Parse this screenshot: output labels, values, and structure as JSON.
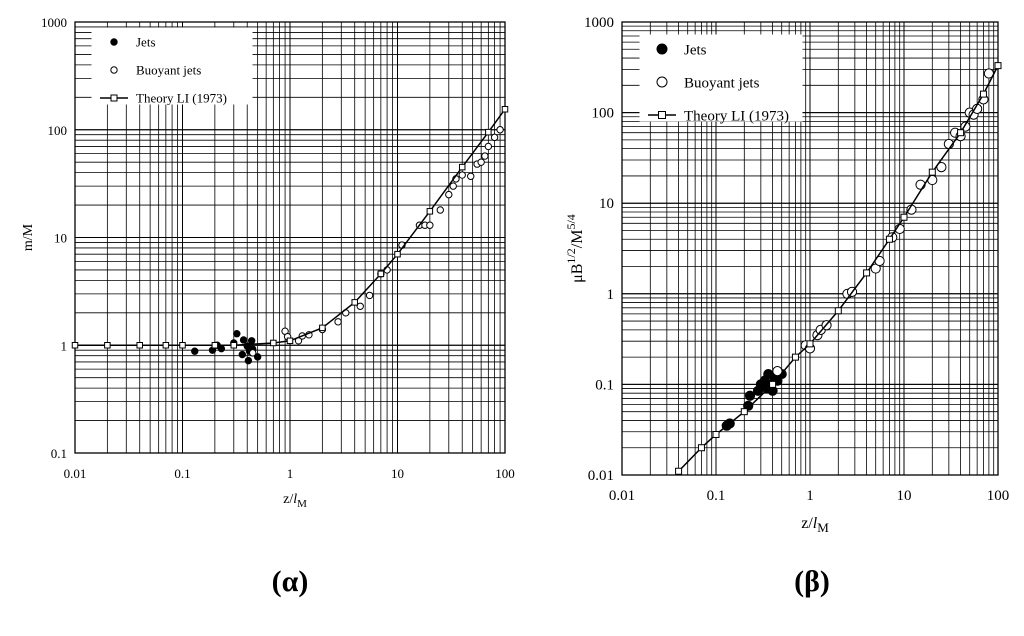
{
  "chart_data": [
    {
      "type": "scatter",
      "panel_label": "(α)",
      "xscale": "log",
      "yscale": "log",
      "xlim": [
        0.01,
        100
      ],
      "ylim": [
        0.1,
        1000
      ],
      "xticks": [
        "0.01",
        "0.1",
        "1",
        "10",
        "100"
      ],
      "yticks": [
        "0.1",
        "1",
        "10",
        "100",
        "1000"
      ],
      "xlabel": {
        "main": "z/",
        "italic": "l",
        "sub": "M"
      },
      "ylabel": "m/M",
      "grid": true,
      "legend_position": "top-left",
      "series": [
        {
          "name": "Jets",
          "marker": "filled-circle",
          "points": [
            [
              0.13,
              0.88
            ],
            [
              0.19,
              0.9
            ],
            [
              0.21,
              1.0
            ],
            [
              0.23,
              0.93
            ],
            [
              0.3,
              1.05
            ],
            [
              0.32,
              1.28
            ],
            [
              0.36,
              0.82
            ],
            [
              0.37,
              1.12
            ],
            [
              0.4,
              0.98
            ],
            [
              0.41,
              0.72
            ],
            [
              0.42,
              0.88
            ],
            [
              0.44,
              1.1
            ],
            [
              0.45,
              0.92
            ],
            [
              0.5,
              0.78
            ]
          ]
        },
        {
          "name": "Buoyant jets",
          "marker": "open-circle",
          "points": [
            [
              0.45,
              0.85
            ],
            [
              0.9,
              1.35
            ],
            [
              0.95,
              1.2
            ],
            [
              1.2,
              1.1
            ],
            [
              1.3,
              1.22
            ],
            [
              1.5,
              1.25
            ],
            [
              2.0,
              1.4
            ],
            [
              2.8,
              1.65
            ],
            [
              3.3,
              2.0
            ],
            [
              4.5,
              2.3
            ],
            [
              5.5,
              2.9
            ],
            [
              7.0,
              4.6
            ],
            [
              8.0,
              5.0
            ],
            [
              11,
              8.5
            ],
            [
              16,
              13
            ],
            [
              18,
              13
            ],
            [
              20,
              13
            ],
            [
              25,
              18
            ],
            [
              30,
              25
            ],
            [
              33,
              30
            ],
            [
              35,
              35
            ],
            [
              40,
              38
            ],
            [
              48,
              37
            ],
            [
              55,
              48
            ],
            [
              60,
              50
            ],
            [
              65,
              57
            ],
            [
              70,
              70
            ],
            [
              80,
              85
            ],
            [
              90,
              100
            ]
          ]
        },
        {
          "name": "Theory LI (1973)",
          "marker": "open-square-line",
          "points": [
            [
              0.01,
              1.0
            ],
            [
              0.02,
              1.0
            ],
            [
              0.04,
              1.0
            ],
            [
              0.07,
              1.0
            ],
            [
              0.1,
              1.0
            ],
            [
              0.2,
              1.0
            ],
            [
              0.3,
              1.0
            ],
            [
              0.7,
              1.05
            ],
            [
              1.0,
              1.1
            ],
            [
              2.0,
              1.45
            ],
            [
              4.0,
              2.5
            ],
            [
              7.0,
              4.6
            ],
            [
              10,
              7.0
            ],
            [
              20,
              17.5
            ],
            [
              40,
              45
            ],
            [
              70,
              95
            ],
            [
              100,
              155
            ]
          ]
        }
      ]
    },
    {
      "type": "scatter",
      "panel_label": "(β)",
      "xscale": "log",
      "yscale": "log",
      "xlim": [
        0.01,
        100
      ],
      "ylim": [
        0.01,
        1000
      ],
      "xticks": [
        "0.01",
        "0.1",
        "1",
        "10",
        "100"
      ],
      "yticks": [
        "0.01",
        "0.1",
        "1",
        "10",
        "100",
        "1000"
      ],
      "xlabel": {
        "main": "z/",
        "italic": "l",
        "sub": "M"
      },
      "ylabel": {
        "main": "μB",
        "sup1": "1/2",
        "mid": "/M",
        "sup2": "5/4"
      },
      "grid": true,
      "legend_position": "top-left",
      "series": [
        {
          "name": "Jets",
          "marker": "filled-circle",
          "points": [
            [
              0.13,
              0.035
            ],
            [
              0.14,
              0.037
            ],
            [
              0.22,
              0.058
            ],
            [
              0.23,
              0.075
            ],
            [
              0.28,
              0.085
            ],
            [
              0.3,
              0.1
            ],
            [
              0.33,
              0.11
            ],
            [
              0.35,
              0.09
            ],
            [
              0.36,
              0.13
            ],
            [
              0.38,
              0.1
            ],
            [
              0.4,
              0.085
            ],
            [
              0.42,
              0.12
            ],
            [
              0.45,
              0.11
            ],
            [
              0.5,
              0.13
            ]
          ]
        },
        {
          "name": "Buoyant jets",
          "marker": "open-circle",
          "points": [
            [
              0.45,
              0.14
            ],
            [
              0.9,
              0.27
            ],
            [
              1.0,
              0.25
            ],
            [
              1.2,
              0.35
            ],
            [
              1.3,
              0.4
            ],
            [
              1.5,
              0.45
            ],
            [
              2.5,
              1.0
            ],
            [
              2.8,
              1.05
            ],
            [
              5.0,
              1.9
            ],
            [
              5.5,
              2.3
            ],
            [
              7.5,
              4.2
            ],
            [
              9.0,
              5.2
            ],
            [
              12,
              8.5
            ],
            [
              15,
              16
            ],
            [
              20,
              18
            ],
            [
              25,
              25
            ],
            [
              30,
              45
            ],
            [
              35,
              60
            ],
            [
              40,
              55
            ],
            [
              45,
              70
            ],
            [
              50,
              100
            ],
            [
              55,
              95
            ],
            [
              60,
              110
            ],
            [
              70,
              140
            ],
            [
              80,
              270
            ]
          ]
        },
        {
          "name": "Theory LI (1973)",
          "marker": "open-square-line",
          "points": [
            [
              0.04,
              0.011
            ],
            [
              0.07,
              0.02
            ],
            [
              0.1,
              0.028
            ],
            [
              0.2,
              0.05
            ],
            [
              0.4,
              0.1
            ],
            [
              0.7,
              0.2
            ],
            [
              1.0,
              0.28
            ],
            [
              2.0,
              0.65
            ],
            [
              4.0,
              1.7
            ],
            [
              7.0,
              4.0
            ],
            [
              10,
              7.0
            ],
            [
              20,
              22
            ],
            [
              40,
              60
            ],
            [
              70,
              160
            ],
            [
              100,
              330
            ]
          ]
        }
      ]
    }
  ]
}
